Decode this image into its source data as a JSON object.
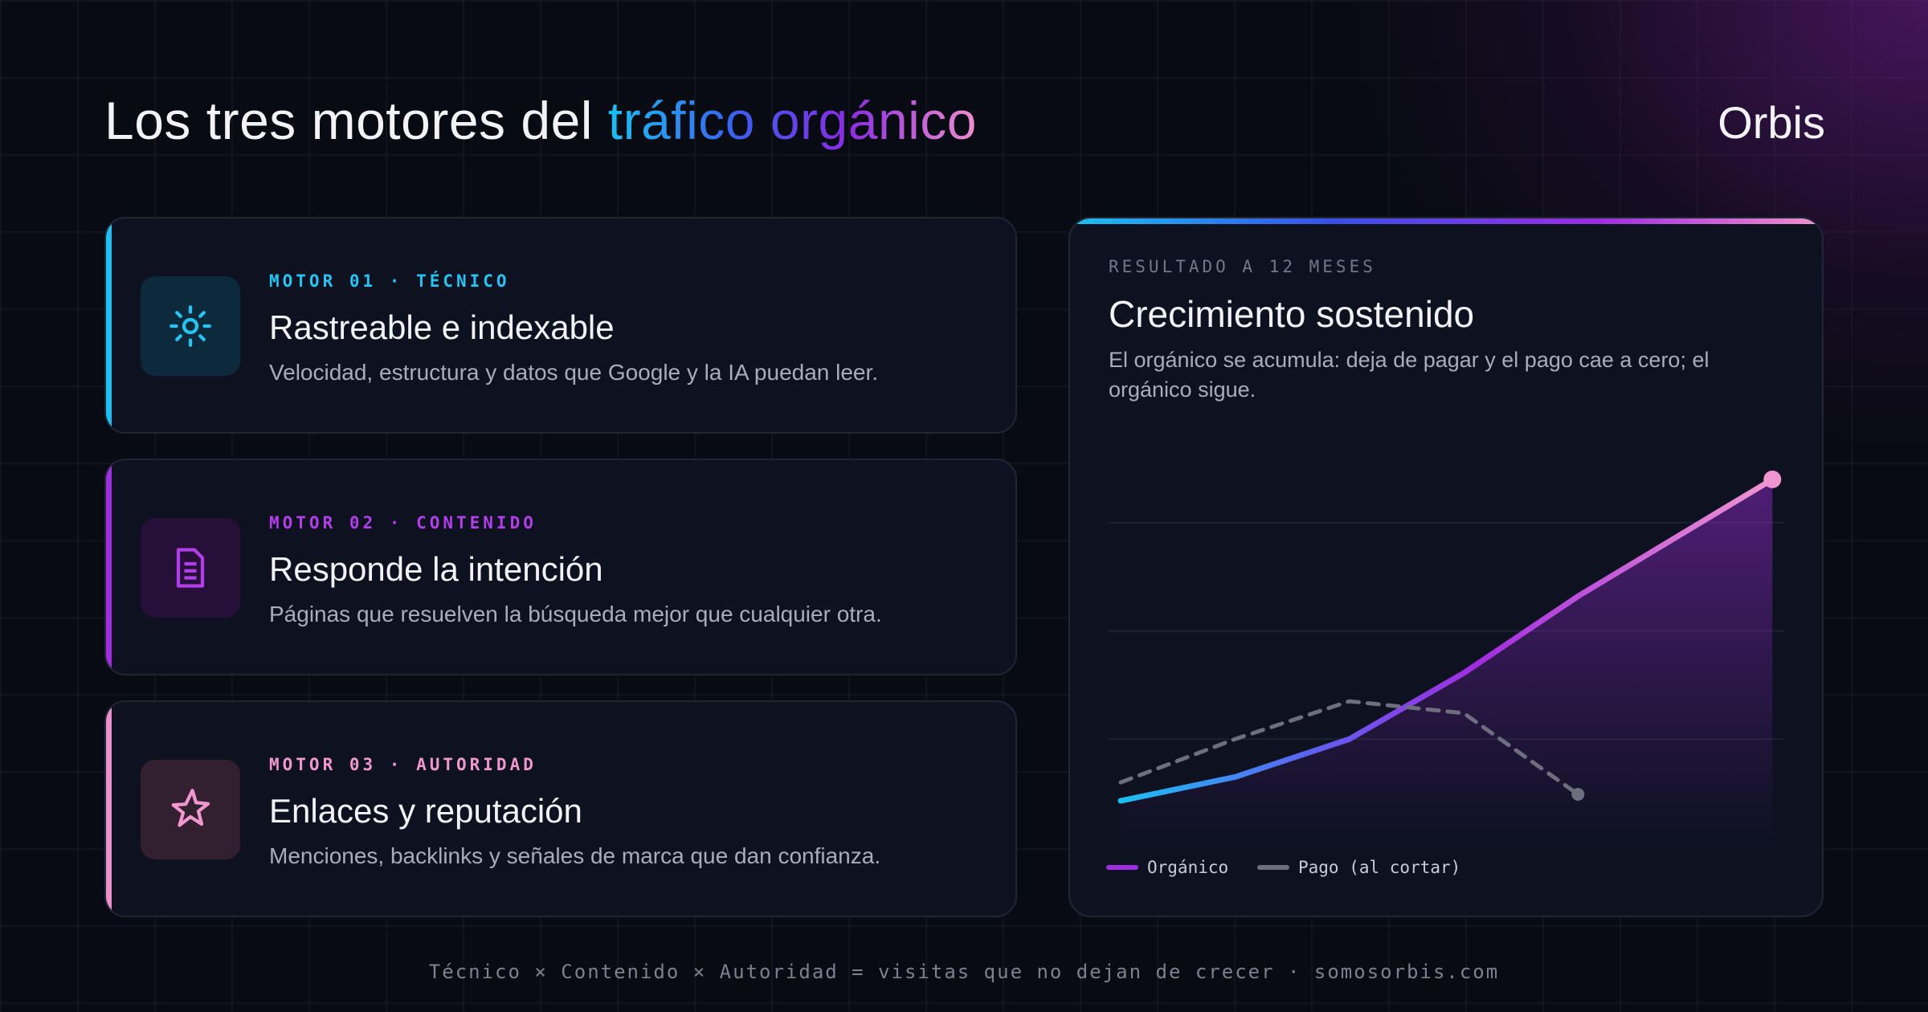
{
  "header": {
    "title_lead": "Los tres motores del",
    "title_accent": "tráfico orgánico",
    "brand": "Orbis"
  },
  "motors": [
    {
      "tag": "MOTOR 01 · TÉCNICO",
      "title": "Rastreable e indexable",
      "description": "Velocidad, estructura y datos que Google y la IA puedan leer."
    },
    {
      "tag": "MOTOR 02 · CONTENIDO",
      "title": "Responde la intención",
      "description": "Páginas que resuelven la búsqueda mejor que cualquier otra."
    },
    {
      "tag": "MOTOR 03 · AUTORIDAD",
      "title": "Enlaces y reputación",
      "description": "Menciones, backlinks y señales de marca que dan confianza."
    }
  ],
  "result_card": {
    "eyebrow": "RESULTADO A 12 MESES",
    "title": "Crecimiento sostenido",
    "description": "El orgánico se acumula: deja de pagar y el pago cae a cero; el orgánico sigue."
  },
  "chart_data": {
    "type": "line",
    "series": [
      {
        "name": "Orgánico",
        "color": "#a12de0",
        "x": [
          0,
          2,
          4,
          6,
          8,
          11.4
        ],
        "values": [
          0.43,
          0.65,
          1,
          1.61,
          2.32,
          3.4
        ]
      },
      {
        "name": "Pago (al cortar)",
        "color": "#6e6e7e",
        "dashed": true,
        "x": [
          0,
          2,
          4,
          6,
          8
        ],
        "values": [
          0.6,
          1,
          1.35,
          1.24,
          0.49
        ]
      }
    ],
    "xlim": [
      0,
      12
    ],
    "ylim": [
      0,
      4
    ],
    "yticks": [
      1,
      2,
      3
    ],
    "grid": true
  },
  "footer": "Técnico × Contenido × Autoridad = visitas que no dejan de crecer · somosorbis.com"
}
